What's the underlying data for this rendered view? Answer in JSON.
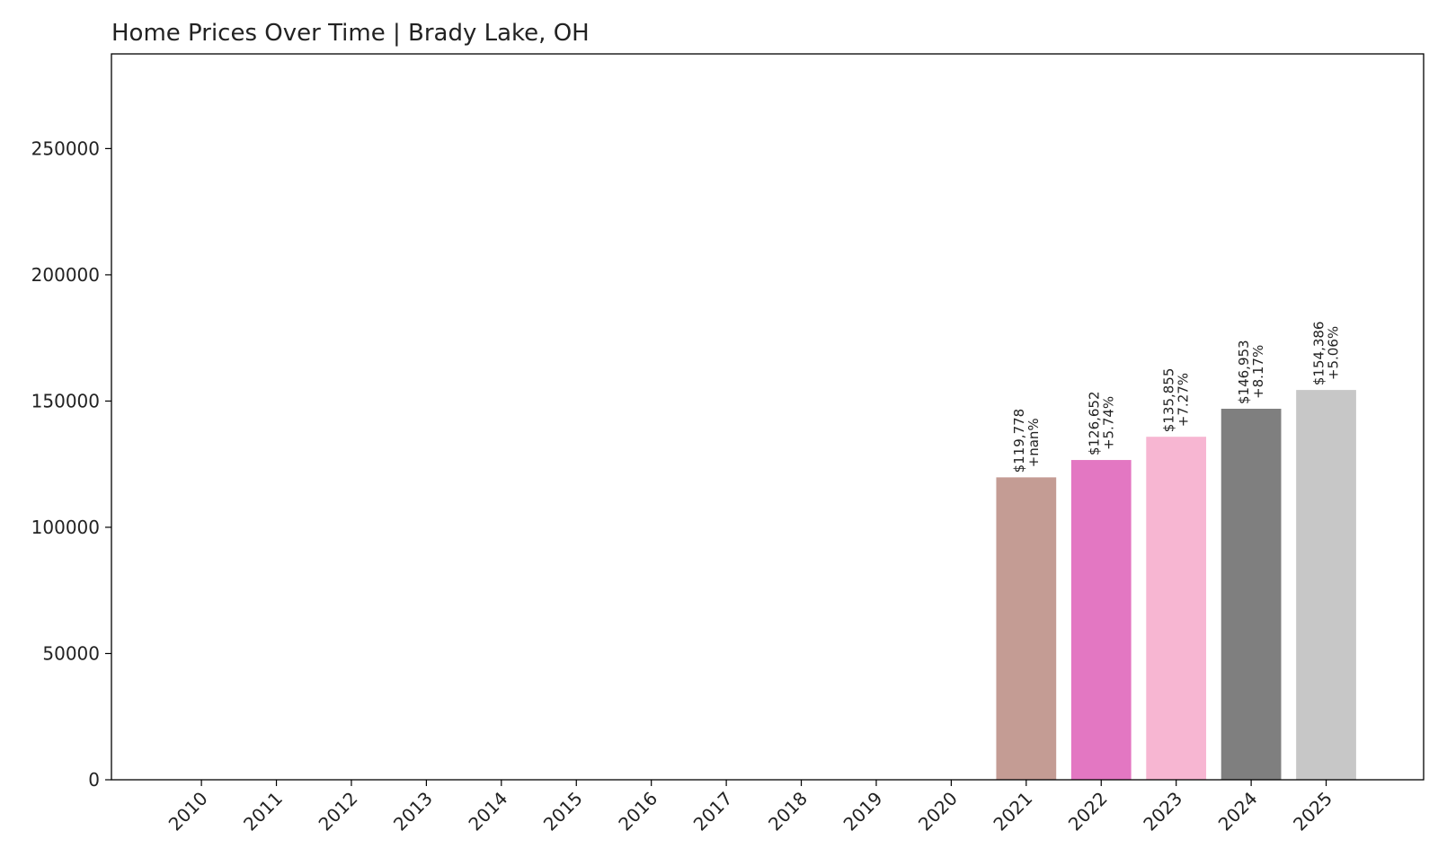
{
  "chart_data": {
    "type": "bar",
    "title": "Home Prices Over Time | Brady Lake, OH",
    "xlabel": "",
    "ylabel": "",
    "categories": [
      "2010",
      "2011",
      "2012",
      "2013",
      "2014",
      "2015",
      "2016",
      "2017",
      "2018",
      "2019",
      "2020",
      "2021",
      "2022",
      "2023",
      "2024",
      "2025"
    ],
    "values": [
      0,
      0,
      0,
      0,
      0,
      0,
      0,
      0,
      0,
      0,
      0,
      119778,
      126652,
      135855,
      146953,
      154386
    ],
    "value_labels": [
      "",
      "",
      "",
      "",
      "",
      "",
      "",
      "",
      "",
      "",
      "",
      "$119,778",
      "$126,652",
      "$135,855",
      "$146,953",
      "$154,386"
    ],
    "change_labels": [
      "",
      "",
      "",
      "",
      "",
      "",
      "",
      "",
      "",
      "",
      "",
      "+nan%",
      "+5.74%",
      "+7.27%",
      "+8.17%",
      "+5.06%"
    ],
    "colors": [
      "#1f77b4",
      "#ff7f0e",
      "#2ca02c",
      "#d62728",
      "#9467bd",
      "#8c564b",
      "#e377c2",
      "#7f7f7f",
      "#bcbd22",
      "#17becf",
      "#1f77b4",
      "#c49c94",
      "#e377c2",
      "#f7b6d2",
      "#7f7f7f",
      "#c7c7c7"
    ],
    "ylim": [
      0,
      287500
    ],
    "yticks": [
      0,
      50000,
      100000,
      150000,
      200000,
      250000
    ],
    "grid": false,
    "legend": "none"
  }
}
